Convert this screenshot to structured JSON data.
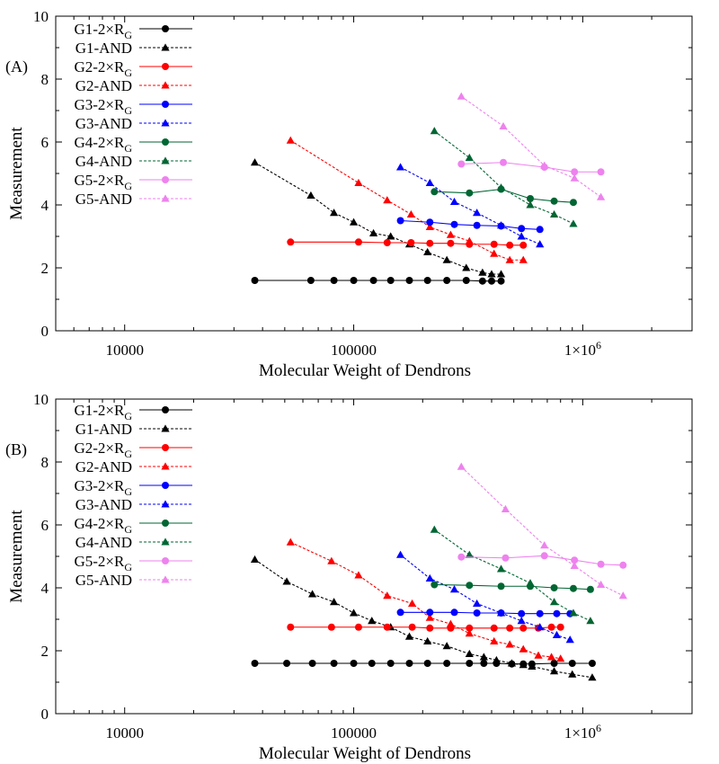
{
  "chart_data": [
    {
      "type": "line",
      "panel_label": "(A)",
      "xlabel": "Molecular Weight of Dendrons",
      "ylabel": "Measurement",
      "xscale": "log",
      "xlim": [
        5000,
        3000000
      ],
      "ylim": [
        0,
        10
      ],
      "xticks": [
        10000,
        100000,
        1000000
      ],
      "xtick_labels": [
        "10000",
        "100000",
        "1×10^6"
      ],
      "yticks": [
        0,
        2,
        4,
        6,
        8,
        10
      ],
      "ytick_labels": [
        "0",
        "2",
        "4",
        "6",
        "8",
        "10"
      ],
      "grid": false,
      "legend_position": "top-left",
      "series": [
        {
          "name": "G1-2×R",
          "name_sub": "G",
          "color": "#000000",
          "line": "solid",
          "marker": "circle",
          "x": [
            37000,
            65000,
            82000,
            100000,
            122000,
            145000,
            175000,
            210000,
            255000,
            310000,
            365000,
            400000,
            440000
          ],
          "y": [
            1.6,
            1.6,
            1.6,
            1.6,
            1.6,
            1.6,
            1.6,
            1.6,
            1.6,
            1.6,
            1.58,
            1.58,
            1.58
          ]
        },
        {
          "name": "G1-AND",
          "color": "#000000",
          "line": "dotted",
          "marker": "triangle",
          "x": [
            37000,
            65000,
            82000,
            100000,
            122000,
            145000,
            175000,
            210000,
            255000,
            310000,
            365000,
            400000,
            440000
          ],
          "y": [
            5.35,
            4.3,
            3.75,
            3.45,
            3.1,
            3.0,
            2.75,
            2.5,
            2.25,
            2.0,
            1.85,
            1.8,
            1.8
          ]
        },
        {
          "name": "G2-2×R",
          "name_sub": "G",
          "color": "#ff0000",
          "line": "solid",
          "marker": "circle",
          "x": [
            53000,
            105000,
            140000,
            178000,
            215000,
            265000,
            320000,
            410000,
            480000,
            550000
          ],
          "y": [
            2.82,
            2.82,
            2.8,
            2.8,
            2.78,
            2.78,
            2.75,
            2.75,
            2.72,
            2.72
          ]
        },
        {
          "name": "G2-AND",
          "color": "#ff0000",
          "line": "dotted",
          "marker": "triangle",
          "x": [
            53000,
            105000,
            140000,
            178000,
            215000,
            265000,
            320000,
            410000,
            480000,
            550000
          ],
          "y": [
            6.05,
            4.7,
            4.15,
            3.7,
            3.3,
            3.05,
            2.85,
            2.45,
            2.25,
            2.25
          ]
        },
        {
          "name": "G3-2×R",
          "name_sub": "G",
          "color": "#0000ff",
          "line": "solid",
          "marker": "circle",
          "x": [
            160000,
            215000,
            275000,
            345000,
            440000,
            540000,
            650000
          ],
          "y": [
            3.5,
            3.45,
            3.38,
            3.35,
            3.33,
            3.25,
            3.22
          ]
        },
        {
          "name": "G3-AND",
          "color": "#0000ff",
          "line": "dotted",
          "marker": "triangle",
          "x": [
            160000,
            215000,
            275000,
            345000,
            440000,
            540000,
            650000
          ],
          "y": [
            5.2,
            4.7,
            4.1,
            3.75,
            3.35,
            3.0,
            2.75
          ]
        },
        {
          "name": "G4-2×R",
          "name_sub": "G",
          "color": "#006633",
          "line": "solid",
          "marker": "circle",
          "x": [
            225000,
            320000,
            440000,
            590000,
            750000,
            910000
          ],
          "y": [
            4.42,
            4.38,
            4.5,
            4.2,
            4.12,
            4.08
          ]
        },
        {
          "name": "G4-AND",
          "color": "#006633",
          "line": "dotted",
          "marker": "triangle",
          "x": [
            225000,
            320000,
            440000,
            590000,
            750000,
            910000
          ],
          "y": [
            6.35,
            5.5,
            4.55,
            4.0,
            3.7,
            3.4
          ]
        },
        {
          "name": "G5-2×R",
          "name_sub": "G",
          "color": "#ee82ee",
          "line": "solid",
          "marker": "circle",
          "x": [
            295000,
            450000,
            680000,
            920000,
            1200000
          ],
          "y": [
            5.3,
            5.35,
            5.2,
            5.05,
            5.05
          ]
        },
        {
          "name": "G5-AND",
          "color": "#ee82ee",
          "line": "dotted",
          "marker": "triangle",
          "x": [
            295000,
            450000,
            680000,
            920000,
            1200000
          ],
          "y": [
            7.45,
            6.5,
            5.25,
            4.85,
            4.25
          ]
        }
      ]
    },
    {
      "type": "line",
      "panel_label": "(B)",
      "xlabel": "Molecular Weight of Dendrons",
      "ylabel": "Measurement",
      "xscale": "log",
      "xlim": [
        5000,
        3000000
      ],
      "ylim": [
        0,
        10
      ],
      "xticks": [
        10000,
        100000,
        1000000
      ],
      "xtick_labels": [
        "10000",
        "100000",
        "1×10^6"
      ],
      "yticks": [
        0,
        2,
        4,
        6,
        8,
        10
      ],
      "ytick_labels": [
        "0",
        "2",
        "4",
        "6",
        "8",
        "10"
      ],
      "grid": false,
      "legend_position": "top-left",
      "series": [
        {
          "name": "G1-2×R",
          "name_sub": "G",
          "color": "#000000",
          "line": "solid",
          "marker": "circle",
          "x": [
            37000,
            51000,
            66000,
            82000,
            100000,
            120000,
            145000,
            175000,
            210000,
            255000,
            320000,
            370000,
            420000,
            490000,
            550000,
            600000,
            750000,
            900000,
            1100000
          ],
          "y": [
            1.6,
            1.6,
            1.6,
            1.6,
            1.6,
            1.6,
            1.6,
            1.6,
            1.6,
            1.6,
            1.6,
            1.6,
            1.6,
            1.58,
            1.58,
            1.58,
            1.6,
            1.6,
            1.6
          ]
        },
        {
          "name": "G1-AND",
          "color": "#000000",
          "line": "dotted",
          "marker": "triangle",
          "x": [
            37000,
            51000,
            66000,
            82000,
            100000,
            120000,
            145000,
            175000,
            210000,
            255000,
            320000,
            370000,
            420000,
            490000,
            550000,
            600000,
            750000,
            900000,
            1100000
          ],
          "y": [
            4.9,
            4.2,
            3.8,
            3.55,
            3.2,
            2.95,
            2.75,
            2.45,
            2.3,
            2.15,
            1.9,
            1.8,
            1.7,
            1.6,
            1.55,
            1.5,
            1.35,
            1.25,
            1.15
          ]
        },
        {
          "name": "G2-2×R",
          "name_sub": "G",
          "color": "#ff0000",
          "line": "solid",
          "marker": "circle",
          "x": [
            53000,
            80000,
            105000,
            140000,
            180000,
            215000,
            265000,
            320000,
            410000,
            480000,
            550000,
            640000,
            730000,
            800000
          ],
          "y": [
            2.75,
            2.75,
            2.75,
            2.75,
            2.75,
            2.72,
            2.72,
            2.72,
            2.72,
            2.72,
            2.72,
            2.72,
            2.75,
            2.75
          ]
        },
        {
          "name": "G2-AND",
          "color": "#ff0000",
          "line": "dotted",
          "marker": "triangle",
          "x": [
            53000,
            80000,
            105000,
            140000,
            180000,
            215000,
            265000,
            320000,
            410000,
            480000,
            550000,
            640000,
            730000,
            800000
          ],
          "y": [
            5.45,
            4.85,
            4.4,
            3.75,
            3.5,
            3.05,
            2.85,
            2.55,
            2.3,
            2.2,
            2.05,
            1.85,
            1.8,
            1.75
          ]
        },
        {
          "name": "G3-2×R",
          "name_sub": "G",
          "color": "#0000ff",
          "line": "solid",
          "marker": "circle",
          "x": [
            160000,
            215000,
            275000,
            345000,
            440000,
            540000,
            650000,
            770000,
            880000
          ],
          "y": [
            3.22,
            3.22,
            3.22,
            3.2,
            3.2,
            3.18,
            3.18,
            3.18,
            3.18
          ]
        },
        {
          "name": "G3-AND",
          "color": "#0000ff",
          "line": "dotted",
          "marker": "triangle",
          "x": [
            160000,
            215000,
            275000,
            345000,
            440000,
            540000,
            650000,
            770000,
            880000
          ],
          "y": [
            5.05,
            4.3,
            3.95,
            3.5,
            3.2,
            2.95,
            2.75,
            2.5,
            2.35
          ]
        },
        {
          "name": "G4-2×R",
          "name_sub": "G",
          "color": "#006633",
          "line": "solid",
          "marker": "circle",
          "x": [
            225000,
            320000,
            440000,
            590000,
            750000,
            910000,
            1080000
          ],
          "y": [
            4.1,
            4.08,
            4.05,
            4.05,
            4.0,
            3.98,
            3.95
          ]
        },
        {
          "name": "G4-AND",
          "color": "#006633",
          "line": "dotted",
          "marker": "triangle",
          "x": [
            225000,
            320000,
            440000,
            590000,
            750000,
            910000,
            1080000
          ],
          "y": [
            5.85,
            5.05,
            4.6,
            4.15,
            3.55,
            3.2,
            2.95
          ]
        },
        {
          "name": "G5-2×R",
          "name_sub": "G",
          "color": "#ee82ee",
          "line": "solid",
          "marker": "circle",
          "x": [
            295000,
            460000,
            680000,
            920000,
            1200000,
            1500000
          ],
          "y": [
            4.98,
            4.95,
            5.02,
            4.88,
            4.75,
            4.72
          ]
        },
        {
          "name": "G5-AND",
          "color": "#ee82ee",
          "line": "dotted",
          "marker": "triangle",
          "x": [
            295000,
            460000,
            680000,
            920000,
            1200000,
            1500000
          ],
          "y": [
            7.85,
            6.5,
            5.35,
            4.7,
            4.1,
            3.75
          ]
        }
      ]
    }
  ]
}
